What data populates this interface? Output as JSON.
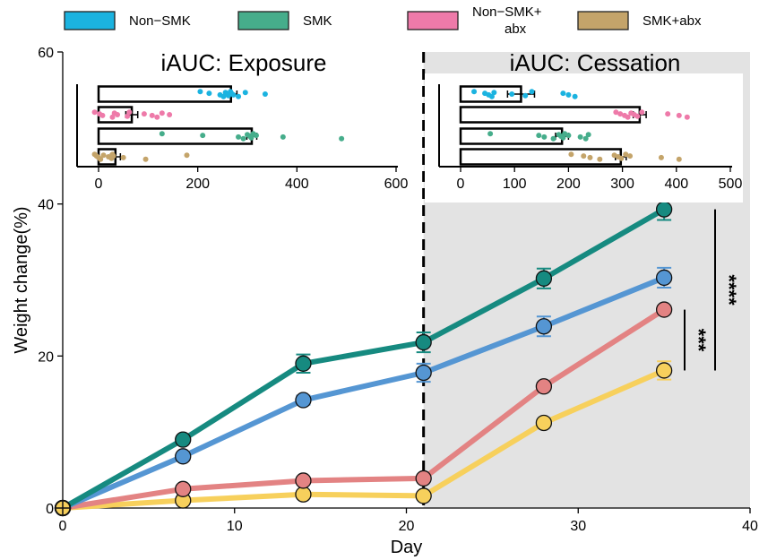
{
  "legend": [
    {
      "label": "Non−SMK",
      "color": "#1bb3e0"
    },
    {
      "label": "SMK",
      "color": "#46ad8b"
    },
    {
      "label": "Non−SMK+\nabx",
      "color": "#ee7aa9"
    },
    {
      "label": "SMK+abx",
      "color": "#c4a46a"
    }
  ],
  "chart_data": [
    {
      "type": "line",
      "xlabel": "Day",
      "ylabel": "Weight change(%)",
      "xlim": [
        0,
        40
      ],
      "ylim": [
        0,
        60
      ],
      "x_ticks": [
        0,
        10,
        20,
        30,
        40
      ],
      "y_ticks": [
        0,
        20,
        40,
        60
      ],
      "shaded_region": {
        "x_start": 21,
        "x_end": 40,
        "color": "#e3e3e3"
      },
      "vline_x": 21,
      "series": [
        {
          "name": "SMK",
          "color": "#168a80",
          "x": [
            0,
            7,
            14,
            21,
            28,
            35
          ],
          "y": [
            0,
            9.0,
            19.0,
            21.8,
            30.2,
            39.3
          ],
          "err": [
            0,
            0.4,
            1.2,
            1.3,
            1.3,
            1.4
          ]
        },
        {
          "name": "Non−SMK",
          "color": "#5596d3",
          "x": [
            0,
            7,
            14,
            21,
            28,
            35
          ],
          "y": [
            0,
            6.8,
            14.2,
            17.8,
            23.9,
            30.3
          ],
          "err": [
            0,
            0.4,
            0.6,
            1.2,
            1.3,
            1.3
          ]
        },
        {
          "name": "Non−SMK+\nabx",
          "color": "#e38383",
          "x": [
            0,
            7,
            14,
            21,
            28,
            35
          ],
          "y": [
            0,
            2.5,
            3.6,
            3.9,
            16.0,
            26.1
          ],
          "err": [
            0,
            0.2,
            0.3,
            0.3,
            0.5,
            0.5
          ]
        },
        {
          "name": "SMK+abx",
          "color": "#f7d05c",
          "x": [
            0,
            7,
            14,
            21,
            28,
            35
          ],
          "y": [
            0,
            1.0,
            1.8,
            1.6,
            11.2,
            18.1
          ],
          "err": [
            0,
            0.2,
            0.2,
            0.2,
            0.4,
            1.2
          ]
        }
      ],
      "significance": [
        {
          "label": "***",
          "y_from": 18.1,
          "y_to": 26.1
        },
        {
          "label": "****",
          "y_from": 18.1,
          "y_to": 39.3
        }
      ]
    },
    {
      "type": "bar",
      "orientation": "horizontal",
      "title": "iAUC: Exposure",
      "xlim": [
        0,
        600
      ],
      "x_ticks": [
        0,
        200,
        400,
        600
      ],
      "categories": [
        "Non−SMK",
        "Non−SMK+\nabx",
        "SMK",
        "SMK+abx"
      ],
      "values": [
        267,
        67,
        309,
        34
      ],
      "errors": [
        12,
        12,
        10,
        10
      ],
      "points": [
        [
          205,
          223,
          245,
          252,
          256,
          258,
          262,
          266,
          268,
          272,
          282,
          296,
          336
        ],
        [
          -8,
          2,
          8,
          28,
          32,
          38,
          58,
          62,
          92,
          108,
          118,
          128,
          143
        ],
        [
          128,
          210,
          282,
          292,
          300,
          305,
          308,
          312,
          318,
          372,
          490
        ],
        [
          -8,
          -4,
          0,
          4,
          10,
          20,
          26,
          28,
          30,
          50,
          95,
          178
        ]
      ]
    },
    {
      "type": "bar",
      "orientation": "horizontal",
      "title": "iAUC: Cessation",
      "xlim": [
        0,
        500
      ],
      "x_ticks": [
        0,
        100,
        200,
        300,
        400,
        500
      ],
      "categories": [
        "Non−SMK",
        "Non−SMK+\nabx",
        "SMK",
        "SMK+abx"
      ],
      "values": [
        112,
        332,
        188,
        297
      ],
      "errors": [
        25,
        12,
        12,
        10
      ],
      "points": [
        [
          25,
          45,
          52,
          58,
          62,
          95,
          120,
          132,
          190,
          200,
          212
        ],
        [
          288,
          296,
          304,
          310,
          316,
          322,
          328,
          336,
          384,
          405,
          420
        ],
        [
          55,
          145,
          155,
          172,
          182,
          186,
          190,
          193,
          200,
          222,
          232,
          237
        ],
        [
          205,
          228,
          240,
          258,
          285,
          292,
          298,
          306,
          314,
          372,
          405
        ]
      ]
    }
  ]
}
